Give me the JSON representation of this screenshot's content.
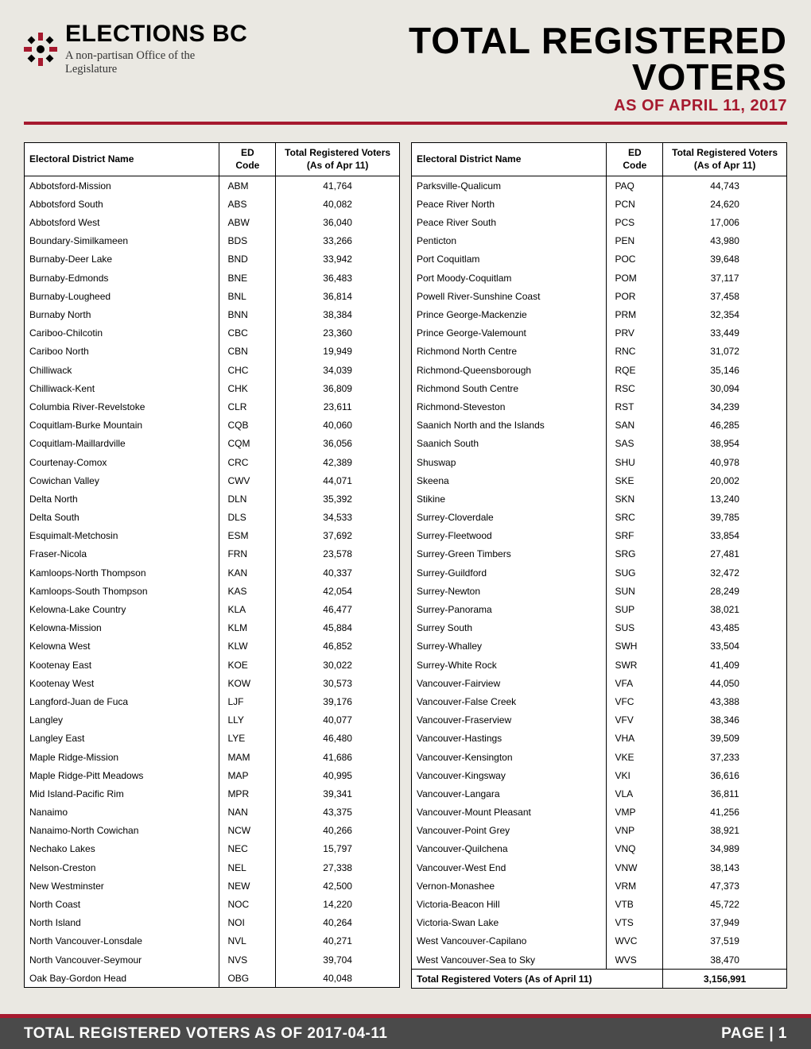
{
  "brand": "ELECTIONS BC",
  "tagline": "A non-partisan Office of the Legislature",
  "title": "TOTAL REGISTERED VOTERS",
  "subtitle": "As of April 11, 2017",
  "columns": {
    "name": "Electoral District Name",
    "code_l1": "ED",
    "code_l2": "Code",
    "voters_l1": "Total Registered Voters",
    "voters_l2": "(As of Apr 11)"
  },
  "left": [
    {
      "n": "Abbotsford-Mission",
      "c": "ABM",
      "v": "41,764"
    },
    {
      "n": "Abbotsford South",
      "c": "ABS",
      "v": "40,082"
    },
    {
      "n": "Abbotsford West",
      "c": "ABW",
      "v": "36,040"
    },
    {
      "n": "Boundary-Similkameen",
      "c": "BDS",
      "v": "33,266"
    },
    {
      "n": "Burnaby-Deer Lake",
      "c": "BND",
      "v": "33,942"
    },
    {
      "n": "Burnaby-Edmonds",
      "c": "BNE",
      "v": "36,483"
    },
    {
      "n": "Burnaby-Lougheed",
      "c": "BNL",
      "v": "36,814"
    },
    {
      "n": "Burnaby North",
      "c": "BNN",
      "v": "38,384"
    },
    {
      "n": "Cariboo-Chilcotin",
      "c": "CBC",
      "v": "23,360"
    },
    {
      "n": "Cariboo North",
      "c": "CBN",
      "v": "19,949"
    },
    {
      "n": "Chilliwack",
      "c": "CHC",
      "v": "34,039"
    },
    {
      "n": "Chilliwack-Kent",
      "c": "CHK",
      "v": "36,809"
    },
    {
      "n": "Columbia River-Revelstoke",
      "c": "CLR",
      "v": "23,611"
    },
    {
      "n": "Coquitlam-Burke Mountain",
      "c": "CQB",
      "v": "40,060"
    },
    {
      "n": "Coquitlam-Maillardville",
      "c": "CQM",
      "v": "36,056"
    },
    {
      "n": "Courtenay-Comox",
      "c": "CRC",
      "v": "42,389"
    },
    {
      "n": "Cowichan Valley",
      "c": "CWV",
      "v": "44,071"
    },
    {
      "n": "Delta North",
      "c": "DLN",
      "v": "35,392"
    },
    {
      "n": "Delta South",
      "c": "DLS",
      "v": "34,533"
    },
    {
      "n": "Esquimalt-Metchosin",
      "c": "ESM",
      "v": "37,692"
    },
    {
      "n": "Fraser-Nicola",
      "c": "FRN",
      "v": "23,578"
    },
    {
      "n": "Kamloops-North Thompson",
      "c": "KAN",
      "v": "40,337"
    },
    {
      "n": "Kamloops-South Thompson",
      "c": "KAS",
      "v": "42,054"
    },
    {
      "n": "Kelowna-Lake Country",
      "c": "KLA",
      "v": "46,477"
    },
    {
      "n": "Kelowna-Mission",
      "c": "KLM",
      "v": "45,884"
    },
    {
      "n": "Kelowna West",
      "c": "KLW",
      "v": "46,852"
    },
    {
      "n": "Kootenay East",
      "c": "KOE",
      "v": "30,022"
    },
    {
      "n": "Kootenay West",
      "c": "KOW",
      "v": "30,573"
    },
    {
      "n": "Langford-Juan de Fuca",
      "c": "LJF",
      "v": "39,176"
    },
    {
      "n": "Langley",
      "c": "LLY",
      "v": "40,077"
    },
    {
      "n": "Langley East",
      "c": "LYE",
      "v": "46,480"
    },
    {
      "n": "Maple Ridge-Mission",
      "c": "MAM",
      "v": "41,686"
    },
    {
      "n": "Maple Ridge-Pitt Meadows",
      "c": "MAP",
      "v": "40,995"
    },
    {
      "n": "Mid Island-Pacific Rim",
      "c": "MPR",
      "v": "39,341"
    },
    {
      "n": "Nanaimo",
      "c": "NAN",
      "v": "43,375"
    },
    {
      "n": "Nanaimo-North Cowichan",
      "c": "NCW",
      "v": "40,266"
    },
    {
      "n": "Nechako Lakes",
      "c": "NEC",
      "v": "15,797"
    },
    {
      "n": "Nelson-Creston",
      "c": "NEL",
      "v": "27,338"
    },
    {
      "n": "New Westminster",
      "c": "NEW",
      "v": "42,500"
    },
    {
      "n": "North Coast",
      "c": "NOC",
      "v": "14,220"
    },
    {
      "n": "North Island",
      "c": "NOI",
      "v": "40,264"
    },
    {
      "n": "North Vancouver-Lonsdale",
      "c": "NVL",
      "v": "40,271"
    },
    {
      "n": "North Vancouver-Seymour",
      "c": "NVS",
      "v": "39,704"
    },
    {
      "n": "Oak Bay-Gordon Head",
      "c": "OBG",
      "v": "40,048"
    }
  ],
  "right": [
    {
      "n": "Parksville-Qualicum",
      "c": "PAQ",
      "v": "44,743"
    },
    {
      "n": "Peace River North",
      "c": "PCN",
      "v": "24,620"
    },
    {
      "n": "Peace River South",
      "c": "PCS",
      "v": "17,006"
    },
    {
      "n": "Penticton",
      "c": "PEN",
      "v": "43,980"
    },
    {
      "n": "Port Coquitlam",
      "c": "POC",
      "v": "39,648"
    },
    {
      "n": "Port Moody-Coquitlam",
      "c": "POM",
      "v": "37,117"
    },
    {
      "n": "Powell River-Sunshine Coast",
      "c": "POR",
      "v": "37,458"
    },
    {
      "n": "Prince George-Mackenzie",
      "c": "PRM",
      "v": "32,354"
    },
    {
      "n": "Prince George-Valemount",
      "c": "PRV",
      "v": "33,449"
    },
    {
      "n": "Richmond North Centre",
      "c": "RNC",
      "v": "31,072"
    },
    {
      "n": "Richmond-Queensborough",
      "c": "RQE",
      "v": "35,146"
    },
    {
      "n": "Richmond South Centre",
      "c": "RSC",
      "v": "30,094"
    },
    {
      "n": "Richmond-Steveston",
      "c": "RST",
      "v": "34,239"
    },
    {
      "n": "Saanich North and the Islands",
      "c": "SAN",
      "v": "46,285"
    },
    {
      "n": "Saanich South",
      "c": "SAS",
      "v": "38,954"
    },
    {
      "n": "Shuswap",
      "c": "SHU",
      "v": "40,978"
    },
    {
      "n": "Skeena",
      "c": "SKE",
      "v": "20,002"
    },
    {
      "n": "Stikine",
      "c": "SKN",
      "v": "13,240"
    },
    {
      "n": "Surrey-Cloverdale",
      "c": "SRC",
      "v": "39,785"
    },
    {
      "n": "Surrey-Fleetwood",
      "c": "SRF",
      "v": "33,854"
    },
    {
      "n": "Surrey-Green Timbers",
      "c": "SRG",
      "v": "27,481"
    },
    {
      "n": "Surrey-Guildford",
      "c": "SUG",
      "v": "32,472"
    },
    {
      "n": "Surrey-Newton",
      "c": "SUN",
      "v": "28,249"
    },
    {
      "n": "Surrey-Panorama",
      "c": "SUP",
      "v": "38,021"
    },
    {
      "n": "Surrey South",
      "c": "SUS",
      "v": "43,485"
    },
    {
      "n": "Surrey-Whalley",
      "c": "SWH",
      "v": "33,504"
    },
    {
      "n": "Surrey-White Rock",
      "c": "SWR",
      "v": "41,409"
    },
    {
      "n": "Vancouver-Fairview",
      "c": "VFA",
      "v": "44,050"
    },
    {
      "n": "Vancouver-False Creek",
      "c": "VFC",
      "v": "43,388"
    },
    {
      "n": "Vancouver-Fraserview",
      "c": "VFV",
      "v": "38,346"
    },
    {
      "n": "Vancouver-Hastings",
      "c": "VHA",
      "v": "39,509"
    },
    {
      "n": "Vancouver-Kensington",
      "c": "VKE",
      "v": "37,233"
    },
    {
      "n": "Vancouver-Kingsway",
      "c": "VKI",
      "v": "36,616"
    },
    {
      "n": "Vancouver-Langara",
      "c": "VLA",
      "v": "36,811"
    },
    {
      "n": "Vancouver-Mount Pleasant",
      "c": "VMP",
      "v": "41,256"
    },
    {
      "n": "Vancouver-Point Grey",
      "c": "VNP",
      "v": "38,921"
    },
    {
      "n": "Vancouver-Quilchena",
      "c": "VNQ",
      "v": "34,989"
    },
    {
      "n": "Vancouver-West End",
      "c": "VNW",
      "v": "38,143"
    },
    {
      "n": "Vernon-Monashee",
      "c": "VRM",
      "v": "47,373"
    },
    {
      "n": "Victoria-Beacon Hill",
      "c": "VTB",
      "v": "45,722"
    },
    {
      "n": "Victoria-Swan Lake",
      "c": "VTS",
      "v": "37,949"
    },
    {
      "n": "West Vancouver-Capilano",
      "c": "WVC",
      "v": "37,519"
    },
    {
      "n": "West Vancouver-Sea to Sky",
      "c": "WVS",
      "v": "38,470"
    }
  ],
  "total_label": "Total Registered Voters (As of April 11)",
  "total_value": "3,156,991",
  "footer_left": "Total Registered Voters as of 2017-04-11",
  "footer_page_label": "Page",
  "footer_page_sep": " | ",
  "footer_page_num": "1"
}
